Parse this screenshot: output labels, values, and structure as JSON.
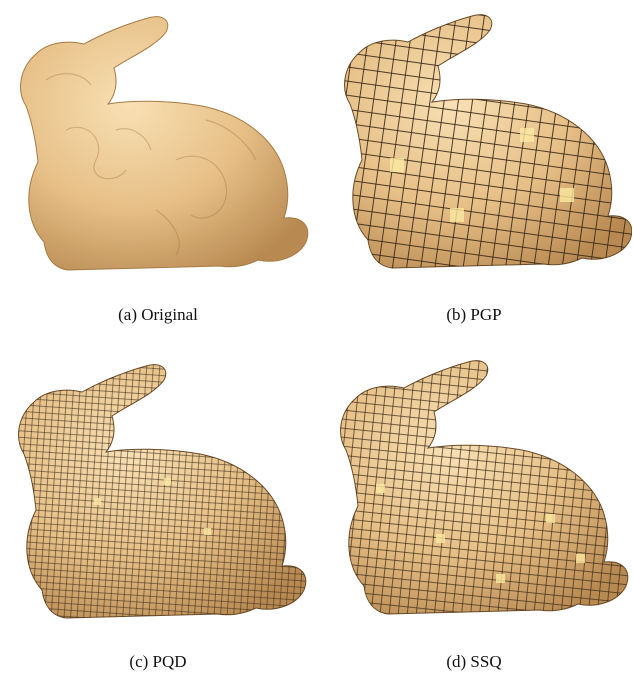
{
  "figure": {
    "panels": [
      {
        "caption": "(a)  Original",
        "mesh": "none"
      },
      {
        "caption": "(b)  PGP",
        "mesh": "coarse"
      },
      {
        "caption": "(c)  PQD",
        "mesh": "fine"
      },
      {
        "caption": "(d)  SSQ",
        "mesh": "medium"
      }
    ],
    "colors": {
      "surface": "#e8c28c",
      "surface_light": "#f6dcae",
      "surface_dark": "#b8894f",
      "mesh_line": "#3a2a18",
      "highlight_quad": "#fbe9a0"
    }
  }
}
